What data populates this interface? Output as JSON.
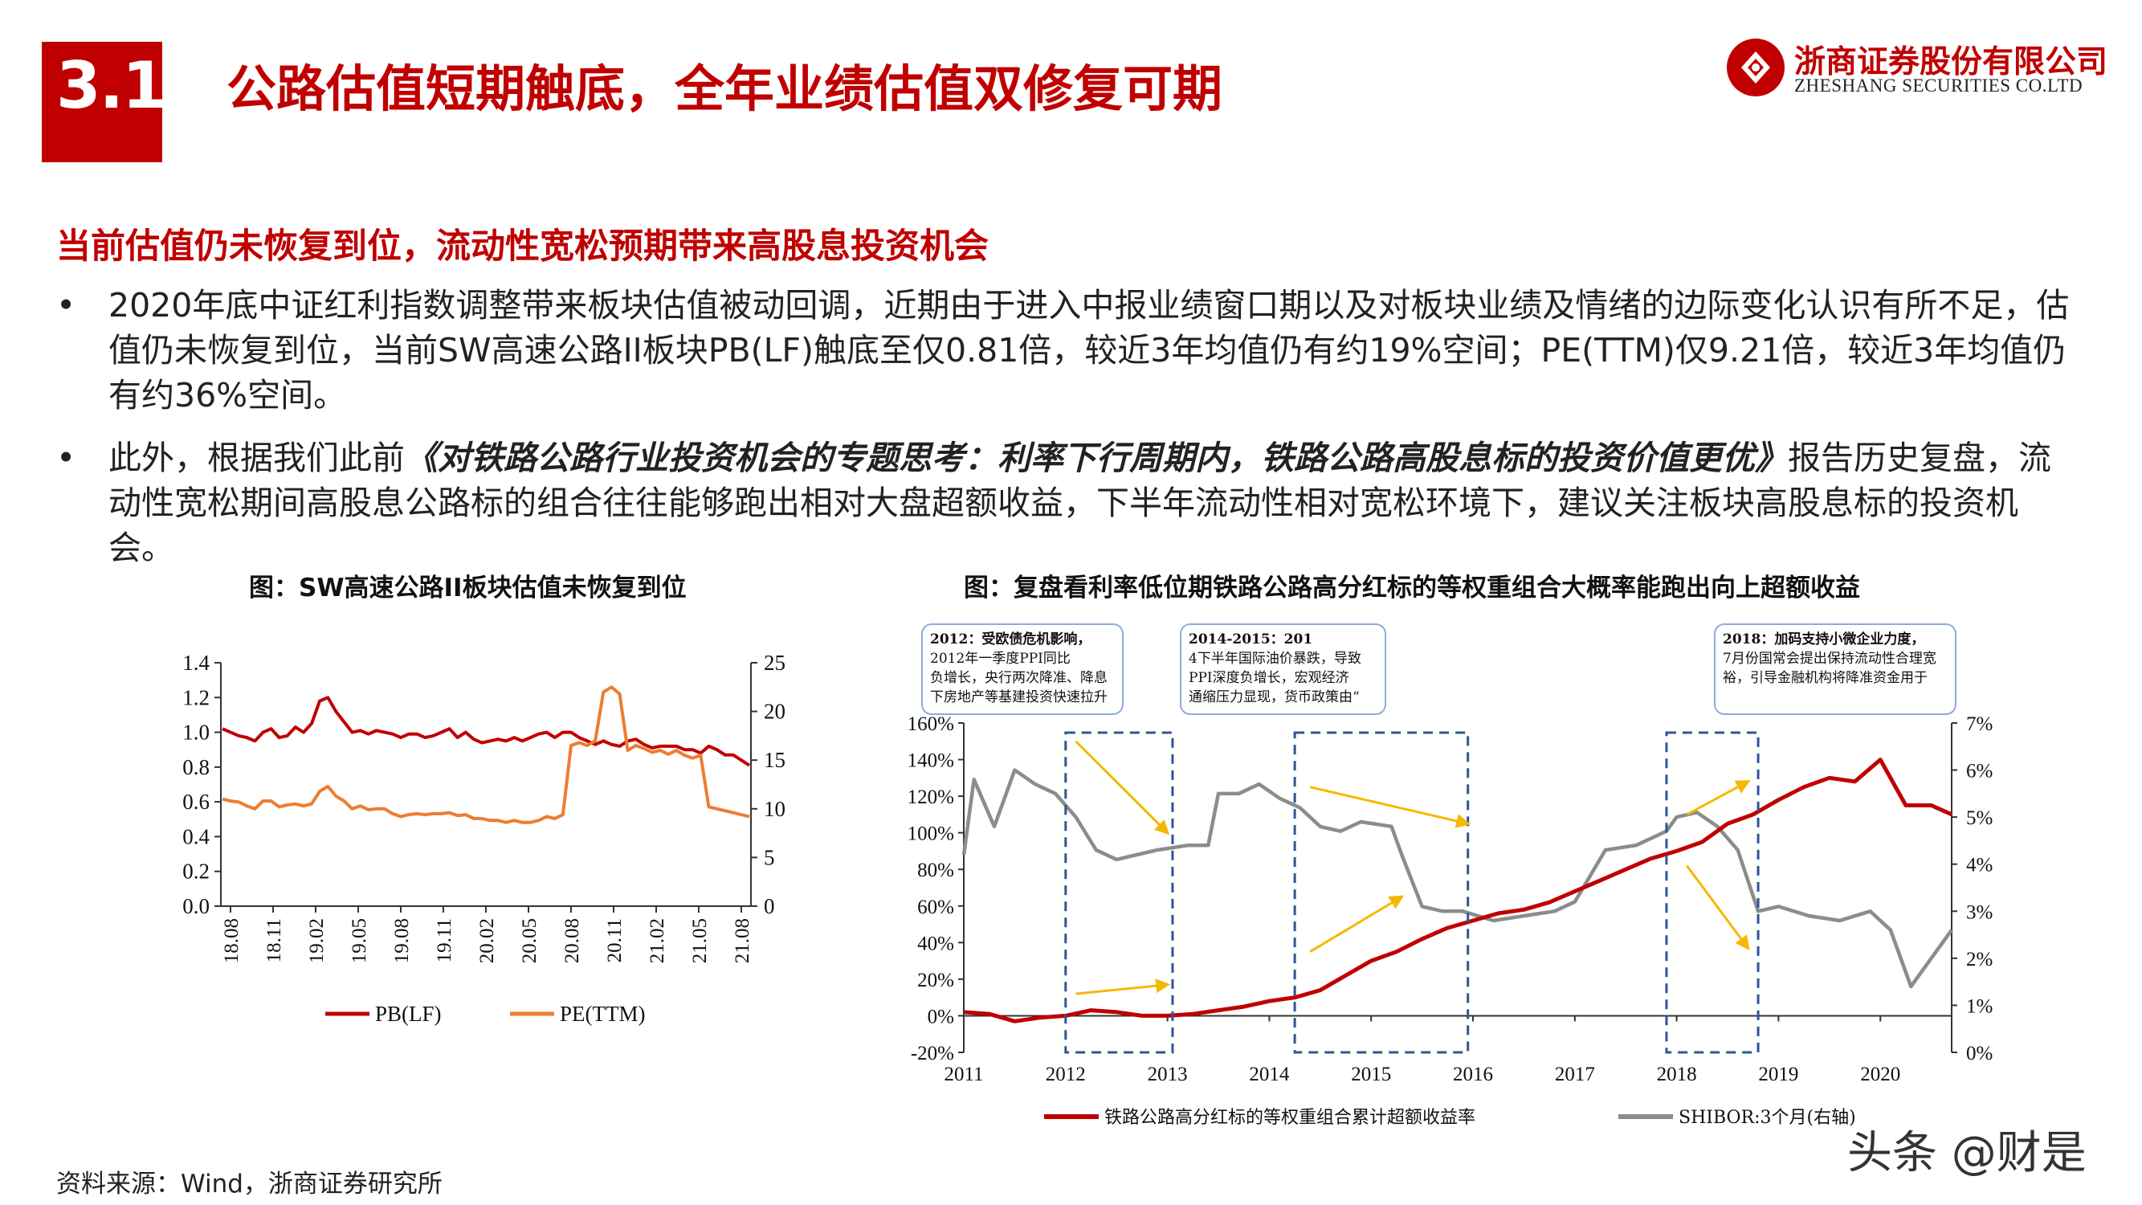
{
  "header": {
    "section_number": "3.1",
    "title": "公路估值短期触底，全年业绩估值双修复可期",
    "logo_cn": "浙商证券股份有限公司",
    "logo_en": "ZHESHANG SECURITIES CO.LTD"
  },
  "body": {
    "subheading": "当前估值仍未恢复到位，流动性宽松预期带来高股息投资机会",
    "bullet_mark": "•",
    "bullet1": "2020年底中证红利指数调整带来板块估值被动回调，近期由于进入中报业绩窗口期以及对板块业绩及情绪的边际变化认识有所不足，估值仍未恢复到位，当前SW高速公路II板块PB(LF)触底至仅0.81倍，较近3年均值仍有约19%空间；PE(TTM)仅9.21倍，较近3年均值仍有约36%空间。",
    "bullet2_pre": "此外，根据我们此前",
    "bullet2_title": "《对铁路公路行业投资机会的专题思考：利率下行周期内，铁路公路高股息标的投资价值更优》",
    "bullet2_post": "报告历史复盘，流动性宽松期间高股息公路标的组合往往能够跑出相对大盘超额收益，下半年流动性相对宽松环境下，建议关注板块高股息标的投资机会。"
  },
  "figure1": {
    "caption": "图：SW高速公路II板块估值未恢复到位"
  },
  "figure2": {
    "caption": "图：复盘看利率低位期铁路公路高分红标的等权重组合大概率能跑出向上超额收益"
  },
  "footer": {
    "source": "资料来源：Wind，浙商证券研究所",
    "watermark": "头条 @财是"
  },
  "colors": {
    "brand_red": "#c00000",
    "pb_line": "#c00000",
    "pe_line": "#ed7d31",
    "shibor_line": "#8c8c8c",
    "arrow": "#f5b800",
    "dash_box": "#2f5597"
  },
  "chart_data": [
    {
      "type": "line",
      "x_ticks": [
        "18.08",
        "18.11",
        "19.02",
        "19.05",
        "19.08",
        "19.11",
        "20.02",
        "20.05",
        "20.08",
        "20.11",
        "21.02",
        "21.05",
        "21.08"
      ],
      "y_left_ticks": [
        "0.0",
        "0.2",
        "0.4",
        "0.6",
        "0.8",
        "1.0",
        "1.2",
        "1.4"
      ],
      "y_right_ticks": [
        "0",
        "5",
        "10",
        "15",
        "20",
        "25"
      ],
      "ylim_left": [
        0,
        1.4
      ],
      "ylim_right": [
        0,
        25
      ],
      "series": [
        {
          "name": "PB(LF)",
          "axis": "left",
          "color": "#c00000",
          "values": [
            1.02,
            1.0,
            0.98,
            0.97,
            0.95,
            1.0,
            1.02,
            0.97,
            0.98,
            1.03,
            1.0,
            1.05,
            1.18,
            1.2,
            1.12,
            1.06,
            1.0,
            1.01,
            0.99,
            1.01,
            1.0,
            0.99,
            0.97,
            0.99,
            0.99,
            0.97,
            0.98,
            1.0,
            1.02,
            0.97,
            1.0,
            0.96,
            0.94,
            0.95,
            0.96,
            0.95,
            0.97,
            0.95,
            0.97,
            0.99,
            1.0,
            0.97,
            1.0,
            1.0,
            0.97,
            0.95,
            0.93,
            0.95,
            0.93,
            0.92,
            0.95,
            0.96,
            0.93,
            0.91,
            0.92,
            0.92,
            0.92,
            0.9,
            0.9,
            0.88,
            0.92,
            0.9,
            0.87,
            0.87,
            0.84,
            0.81
          ]
        },
        {
          "name": "PE(TTM)",
          "axis": "right",
          "color": "#ed7d31",
          "values": [
            11.0,
            10.8,
            10.7,
            10.3,
            10.0,
            10.8,
            10.8,
            10.2,
            10.4,
            10.5,
            10.3,
            10.5,
            11.8,
            12.3,
            11.3,
            10.8,
            10.0,
            10.3,
            9.9,
            10.0,
            10.0,
            9.5,
            9.2,
            9.4,
            9.5,
            9.4,
            9.5,
            9.5,
            9.6,
            9.3,
            9.4,
            9.0,
            9.0,
            8.8,
            8.8,
            8.6,
            8.8,
            8.6,
            8.6,
            8.8,
            9.2,
            9.0,
            9.4,
            16.5,
            16.8,
            16.5,
            17.0,
            22.0,
            22.5,
            21.8,
            16.0,
            16.5,
            16.2,
            15.8,
            16.0,
            15.6,
            16.0,
            15.5,
            15.2,
            15.5,
            10.2,
            10.0,
            9.8,
            9.6,
            9.4,
            9.21
          ]
        }
      ]
    },
    {
      "type": "line",
      "x_ticks": [
        "2011",
        "2012",
        "2013",
        "2014",
        "2015",
        "2016",
        "2017",
        "2018",
        "2019",
        "2020"
      ],
      "y_left_ticks": [
        "-20%",
        "0%",
        "20%",
        "40%",
        "60%",
        "80%",
        "100%",
        "120%",
        "140%",
        "160%"
      ],
      "y_right_ticks": [
        "0%",
        "1%",
        "2%",
        "3%",
        "4%",
        "5%",
        "6%",
        "7%"
      ],
      "ylim_left": [
        -20,
        160
      ],
      "ylim_right": [
        0,
        7
      ],
      "series": [
        {
          "name": "铁路公路高分红标的等权重组合累计超额收益率",
          "axis": "left",
          "color": "#c00000",
          "x": [
            2011.0,
            2011.25,
            2011.5,
            2011.75,
            2012.0,
            2012.25,
            2012.5,
            2012.75,
            2013.0,
            2013.25,
            2013.5,
            2013.75,
            2014.0,
            2014.25,
            2014.5,
            2014.75,
            2015.0,
            2015.25,
            2015.5,
            2015.75,
            2016.0,
            2016.25,
            2016.5,
            2016.75,
            2017.0,
            2017.25,
            2017.5,
            2017.75,
            2018.0,
            2018.25,
            2018.5,
            2018.75,
            2019.0,
            2019.25,
            2019.5,
            2019.75,
            2020.0,
            2020.25,
            2020.5,
            2020.7
          ],
          "y": [
            2,
            1,
            -3,
            -1,
            0,
            3,
            2,
            0,
            0,
            1,
            3,
            5,
            8,
            10,
            14,
            22,
            30,
            35,
            42,
            48,
            52,
            56,
            58,
            62,
            68,
            74,
            80,
            86,
            90,
            95,
            105,
            110,
            118,
            125,
            130,
            128,
            140,
            115,
            115,
            110
          ]
        },
        {
          "name": "SHIBOR:3个月(右轴)",
          "axis": "right",
          "color": "#8c8c8c",
          "x": [
            2011.0,
            2011.1,
            2011.3,
            2011.5,
            2011.7,
            2011.9,
            2012.1,
            2012.3,
            2012.5,
            2012.7,
            2012.9,
            2013.2,
            2013.4,
            2013.5,
            2013.7,
            2013.9,
            2014.1,
            2014.3,
            2014.5,
            2014.7,
            2014.9,
            2015.2,
            2015.3,
            2015.5,
            2015.7,
            2015.9,
            2016.2,
            2016.5,
            2016.8,
            2017.0,
            2017.3,
            2017.6,
            2017.9,
            2018.0,
            2018.2,
            2018.4,
            2018.6,
            2018.8,
            2019.0,
            2019.3,
            2019.6,
            2019.9,
            2020.1,
            2020.3,
            2020.5,
            2020.7
          ],
          "y": [
            4.2,
            5.8,
            4.8,
            6.0,
            5.7,
            5.5,
            5.0,
            4.3,
            4.1,
            4.2,
            4.3,
            4.4,
            4.4,
            5.5,
            5.5,
            5.7,
            5.4,
            5.2,
            4.8,
            4.7,
            4.9,
            4.8,
            4.2,
            3.1,
            3.0,
            3.0,
            2.8,
            2.9,
            3.0,
            3.2,
            4.3,
            4.4,
            4.7,
            5.0,
            5.1,
            4.8,
            4.3,
            3.0,
            3.1,
            2.9,
            2.8,
            3.0,
            2.6,
            1.4,
            2.0,
            2.6
          ]
        }
      ],
      "annotations": [
        {
          "year": "2012：",
          "text": "受欧债危机影响，2012年一季度PPI同比负增长，央行两次降准、降息下房地产等基建投资快速拉升"
        },
        {
          "year": "2014-2015：",
          "text": "2014下半年国际油价暴跌，导致PPI深度负增长，宏观经济通缩压力显现，货币政策由“定向降准”转向“全面宽松”"
        },
        {
          "year": "2018：",
          "text": "加码支持小微企业力度，7月份国常会提出保持流动性合理宽裕，引导金融机构将降准资金用于"
        }
      ]
    }
  ]
}
